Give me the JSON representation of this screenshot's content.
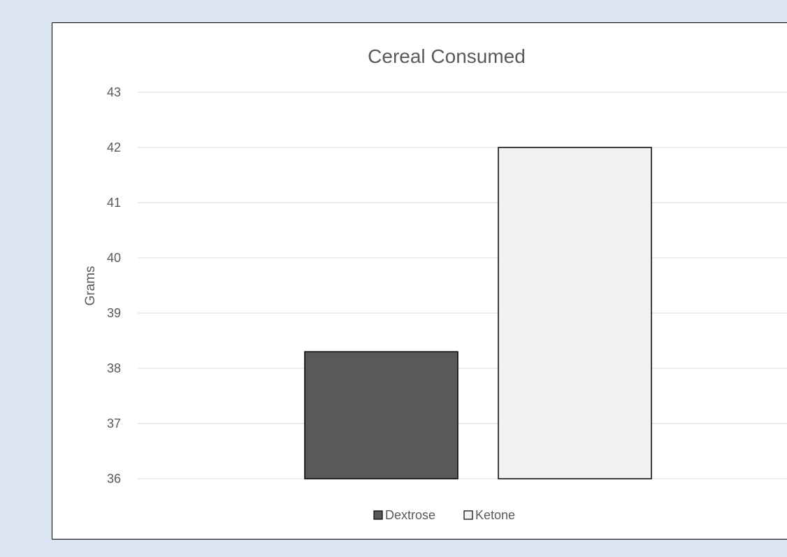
{
  "chart_data": {
    "type": "bar",
    "title": "Cereal Consumed",
    "xlabel": "",
    "ylabel": "Grams",
    "ylim": [
      36,
      43
    ],
    "yticks": [
      36,
      37,
      38,
      39,
      40,
      41,
      42,
      43
    ],
    "grid": true,
    "legend_position": "bottom",
    "series": [
      {
        "name": "Dextrose",
        "value": 38.3,
        "color": "#595959"
      },
      {
        "name": "Ketone",
        "value": 42.0,
        "color": "#f2f2f2"
      }
    ]
  }
}
